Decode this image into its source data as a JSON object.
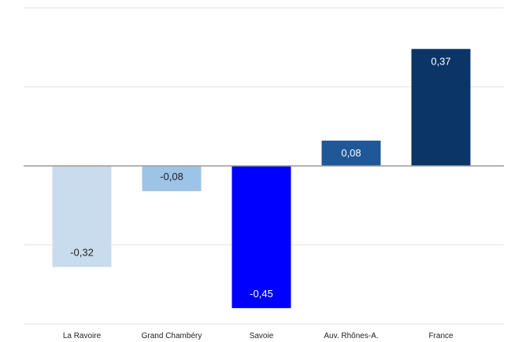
{
  "chart_data": {
    "type": "bar",
    "categories": [
      "La Ravoire",
      "Grand Chambéry",
      "Savoie",
      "Auv. Rhônes-A.",
      "France"
    ],
    "values": [
      -0.32,
      -0.08,
      -0.45,
      0.08,
      0.37
    ],
    "value_labels": [
      "-0,32",
      "-0,08",
      "-0,45",
      "0,08",
      "0,37"
    ],
    "colors": [
      "#c9dcee",
      "#9dc3e6",
      "#0000ff",
      "#1f5797",
      "#0b3566"
    ],
    "label_colors": [
      "#222222",
      "#222222",
      "#ffffff",
      "#ffffff",
      "#ffffff"
    ],
    "title": "",
    "xlabel": "",
    "ylabel": "",
    "ylim": [
      -0.5,
      0.5
    ],
    "gridlines": [
      -0.5,
      -0.25,
      0,
      0.25,
      0.5
    ],
    "grid": true,
    "legend": "none"
  }
}
